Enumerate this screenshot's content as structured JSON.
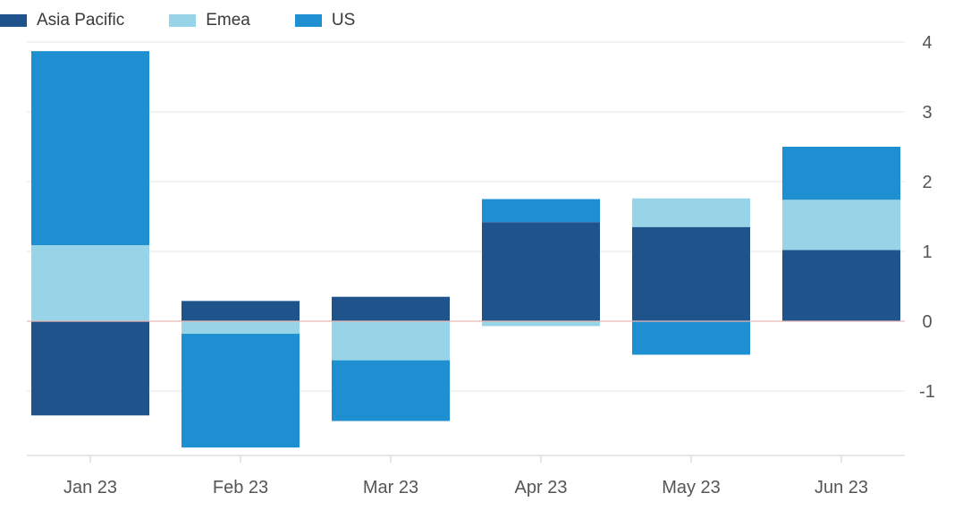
{
  "chart_data": {
    "type": "bar",
    "stacked": true,
    "categories": [
      "Jan 23",
      "Feb 23",
      "Mar 23",
      "Apr 23",
      "May 23",
      "Jun 23"
    ],
    "series": [
      {
        "name": "Asia Pacific",
        "color": "#1f538b",
        "values": [
          -1.35,
          0.29,
          0.35,
          1.42,
          1.35,
          1.02
        ]
      },
      {
        "name": "Emea",
        "color": "#97d4e8",
        "values": [
          1.09,
          -0.18,
          -0.56,
          -0.07,
          0.41,
          0.72
        ]
      },
      {
        "name": "US",
        "color": "#1e8fd0",
        "values": [
          2.78,
          -1.63,
          -0.87,
          0.33,
          -0.48,
          0.76
        ]
      }
    ],
    "ylim": [
      -1.9,
      4.1
    ],
    "yticks": [
      -1,
      0,
      1,
      2,
      3,
      4
    ],
    "ytick_labels": [
      "-1",
      "0",
      "1",
      "2",
      "3",
      "4"
    ],
    "grid": true,
    "legend": "top-left",
    "y_axis_side": "right"
  }
}
